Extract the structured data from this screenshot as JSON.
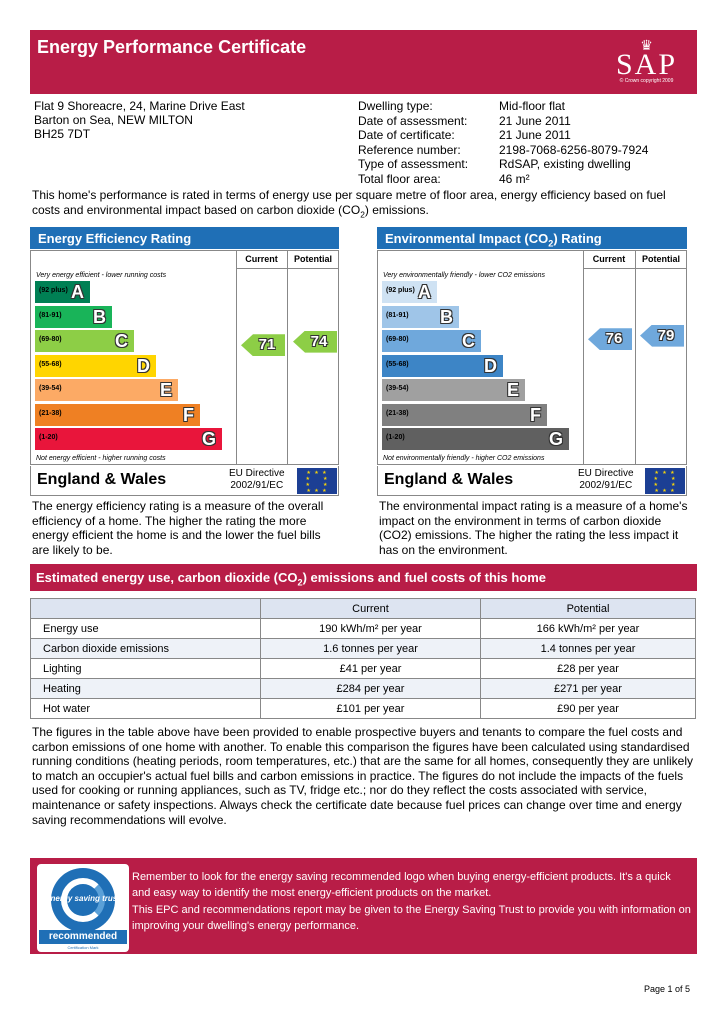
{
  "header": {
    "title": "Energy Performance Certificate",
    "logo_text": "SAP",
    "logo_copyright": "© Crown copyright 2009"
  },
  "address": {
    "line1": "Flat 9 Shoreacre, 24, Marine Drive East",
    "line2": "Barton on Sea, NEW MILTON",
    "postcode": "BH25 7DT"
  },
  "facts": [
    {
      "label": "Dwelling type:",
      "value": "Mid-floor flat"
    },
    {
      "label": "Date of assessment:",
      "value": "21 June 2011"
    },
    {
      "label": "Date of certificate:",
      "value": "21 June 2011"
    },
    {
      "label": "Reference number:",
      "value": "2198-7068-6256-8079-7924"
    },
    {
      "label": "Type of assessment:",
      "value": "RdSAP, existing dwelling"
    },
    {
      "label": "Total floor area:",
      "value": "46 m²"
    }
  ],
  "intro": {
    "text_before": "This home's performance is rated in terms of energy use per square metre of floor area, energy efficiency based on fuel costs and environmental impact based on carbon dioxide (CO",
    "sub": "2",
    "text_after": ") emissions."
  },
  "efficiency": {
    "title": "Energy Efficiency Rating",
    "col_current": "Current",
    "col_potential": "Potential",
    "top_note": "Very energy efficient - lower running costs",
    "bottom_note": "Not energy efficient - higher running costs",
    "bands": [
      {
        "range": "(92 plus)",
        "letter": "A",
        "color": "#008054"
      },
      {
        "range": "(81-91)",
        "letter": "B",
        "color": "#19b459"
      },
      {
        "range": "(69-80)",
        "letter": "C",
        "color": "#8dce46"
      },
      {
        "range": "(55-68)",
        "letter": "D",
        "color": "#ffd500"
      },
      {
        "range": "(39-54)",
        "letter": "E",
        "color": "#fcaa65"
      },
      {
        "range": "(21-38)",
        "letter": "F",
        "color": "#ef8023"
      },
      {
        "range": "(1-20)",
        "letter": "G",
        "color": "#e9153b"
      }
    ],
    "current": {
      "value": "71",
      "color": "#8dce46"
    },
    "potential": {
      "value": "74",
      "color": "#8dce46"
    },
    "region": "England & Wales",
    "eu_line1": "EU Directive",
    "eu_line2": "2002/91/EC",
    "description": "The energy efficiency rating is a measure of the overall efficiency of a home. The higher the rating the more energy efficient the home is and the lower the fuel bills are likely to be."
  },
  "environment": {
    "title_before": "Environmental Impact (CO",
    "title_sub": "2",
    "title_after": ") Rating",
    "col_current": "Current",
    "col_potential": "Potential",
    "top_note": "Very environmentally friendly - lower CO2 emissions",
    "bottom_note": "Not environmentally friendly - higher CO2 emissions",
    "bands": [
      {
        "range": "(92 plus)",
        "letter": "A",
        "color": "#cfe2f3"
      },
      {
        "range": "(81-91)",
        "letter": "B",
        "color": "#9fc5e8"
      },
      {
        "range": "(69-80)",
        "letter": "C",
        "color": "#6fa8dc"
      },
      {
        "range": "(55-68)",
        "letter": "D",
        "color": "#3d85c6"
      },
      {
        "range": "(39-54)",
        "letter": "E",
        "color": "#a0a0a0"
      },
      {
        "range": "(21-38)",
        "letter": "F",
        "color": "#808080"
      },
      {
        "range": "(1-20)",
        "letter": "G",
        "color": "#606060"
      }
    ],
    "current": {
      "value": "76",
      "color": "#6fa8dc"
    },
    "potential": {
      "value": "79",
      "color": "#6fa8dc"
    },
    "region": "England & Wales",
    "eu_line1": "EU Directive",
    "eu_line2": "2002/91/EC",
    "description": "The environmental impact rating is a measure of a home's impact on the environment in terms of carbon dioxide (CO2) emissions. The higher the rating the less impact it has on the environment."
  },
  "estimated": {
    "title_before": "Estimated energy use, carbon dioxide (CO",
    "title_sub": "2",
    "title_after": ") emissions and fuel costs of this home",
    "col_current": "Current",
    "col_potential": "Potential",
    "rows": [
      {
        "name": "Energy use",
        "current": "190 kWh/m² per year",
        "potential": "166 kWh/m² per year"
      },
      {
        "name": "Carbon dioxide emissions",
        "current": "1.6 tonnes per year",
        "potential": "1.4 tonnes per year"
      },
      {
        "name": "Lighting",
        "current": "£41 per year",
        "potential": "£28 per year"
      },
      {
        "name": "Heating",
        "current": "£284 per year",
        "potential": "£271 per year"
      },
      {
        "name": "Hot water",
        "current": "£101 per year",
        "potential": "£90 per year"
      }
    ]
  },
  "figures_text": "The figures in the table above have been provided to enable prospective buyers and tenants to compare the fuel costs and carbon emissions of one home with another. To enable this comparison the figures have been calculated using standardised running conditions (heating periods, room temperatures, etc.) that are the same for all homes, consequently they are unlikely to match an occupier's actual fuel bills and carbon emissions in practice. The figures do not include the impacts of the fuels used for cooking or running appliances, such as TV, fridge etc.; nor do they reflect the costs associated with service, maintenance or safety inspections. Always check the certificate date because fuel prices can change over time and energy saving recommendations will evolve.",
  "banner": {
    "logo_brand": "energy saving trust",
    "logo_recommended": "recommended",
    "logo_mark": "Certification Mark",
    "para1": "Remember to look for the energy saving recommended logo when buying energy-efficient products. It's a quick and easy way to identify the most energy-efficient products on the market.",
    "para2": "This EPC and recommendations report may be given to the Energy Saving Trust to provide you with information on improving your dwelling's energy performance."
  },
  "page": "Page 1 of 5"
}
